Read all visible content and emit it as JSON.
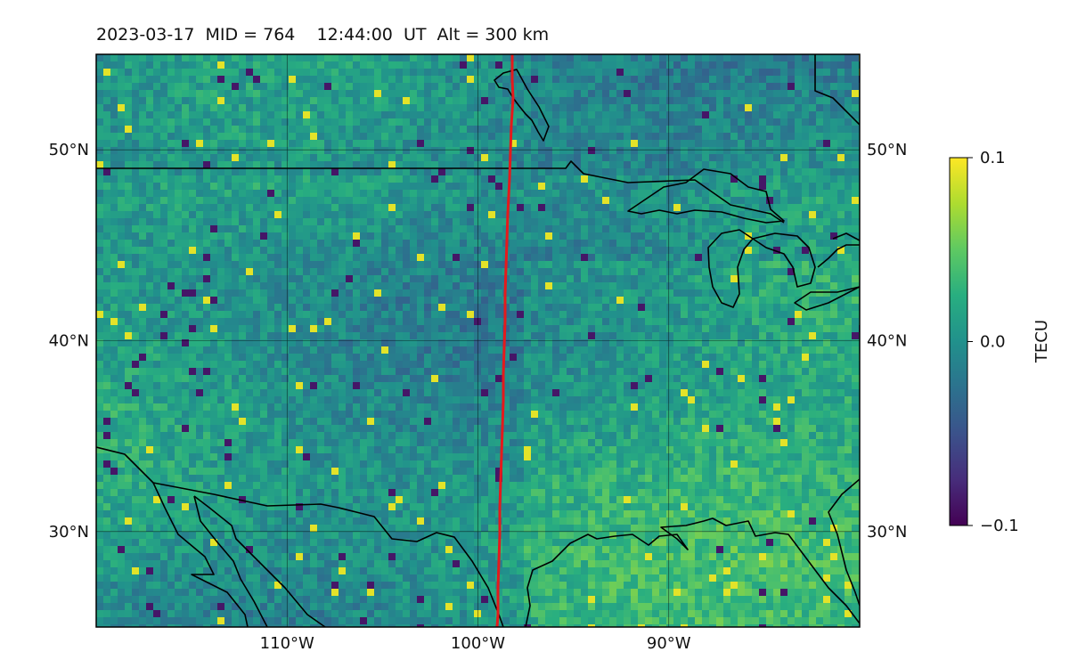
{
  "title": "2023-03-17  MID = 764    12:44:00  UT  Alt = 300 km",
  "map": {
    "lon_range": [
      -120,
      -80
    ],
    "lat_range": [
      25,
      55
    ],
    "lat_ticks": [
      {
        "value": 50,
        "label": "50°N"
      },
      {
        "value": 40,
        "label": "40°N"
      },
      {
        "value": 30,
        "label": "30°N"
      }
    ],
    "lon_ticks": [
      {
        "value": -110,
        "label": "110°W"
      },
      {
        "value": -100,
        "label": "100°W"
      },
      {
        "value": -90,
        "label": "90°W"
      }
    ],
    "gridlines": true,
    "overlay_line_color": "#e41a1c",
    "coast_color": "#000000"
  },
  "colorbar": {
    "label": "TECU",
    "min": -0.1,
    "max": 0.1,
    "ticks": [
      {
        "value": 0.1,
        "label": "0.1"
      },
      {
        "value": 0.0,
        "label": "0.0"
      },
      {
        "value": -0.1,
        "label": "−0.1"
      }
    ],
    "colormap": "viridis"
  }
}
